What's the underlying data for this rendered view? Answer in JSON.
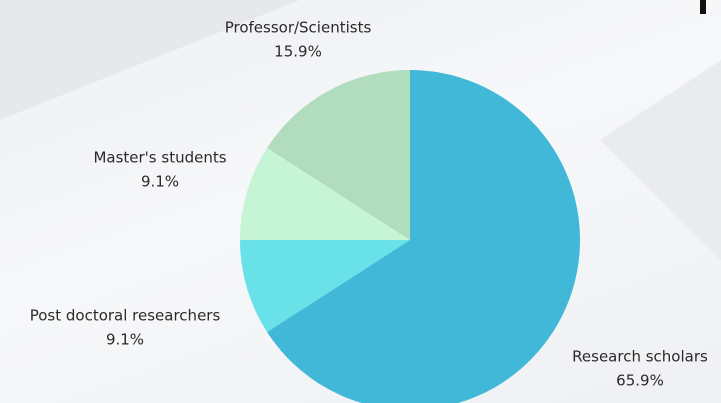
{
  "chart_data": {
    "type": "pie",
    "categories": [
      "Research scholars",
      "Post doctoral researchers",
      "Master's students",
      "Professor/Scientists"
    ],
    "values": [
      65.9,
      9.1,
      9.1,
      15.9
    ],
    "value_labels": [
      "65.9%",
      "9.1%",
      "9.1%",
      "15.9%"
    ],
    "colors": [
      "#42b8d8",
      "#68e2e8",
      "#c6f5d6",
      "#b2dcbe"
    ]
  }
}
